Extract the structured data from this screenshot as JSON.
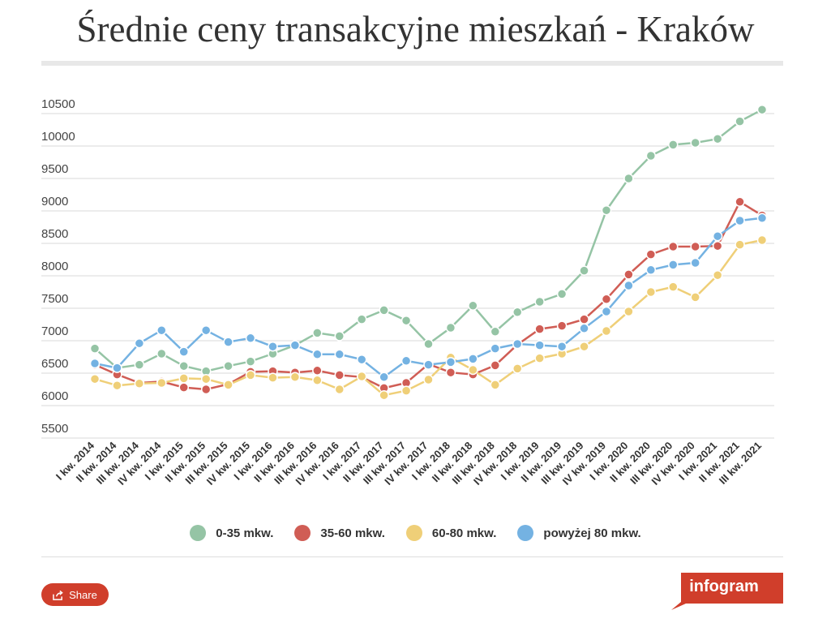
{
  "page": {
    "title": "Średnie ceny transakcyjne mieszkań - Kraków",
    "share_label": "Share",
    "brand": "infogram"
  },
  "colors": {
    "series": [
      "#95c4a5",
      "#d05d55",
      "#efcf78",
      "#74b2e2"
    ],
    "grid": "#d9d9d9",
    "accent": "#d03e2b"
  },
  "icons": {
    "share": "share-icon"
  },
  "chart_data": {
    "type": "line",
    "title": "Średnie ceny transakcyjne mieszkań - Kraków",
    "xlabel": "",
    "ylabel": "",
    "ylim": [
      5500,
      10500
    ],
    "yticks": [
      5500,
      6000,
      6500,
      7000,
      7500,
      8000,
      8500,
      9000,
      9500,
      10000,
      10500
    ],
    "grid": true,
    "legend_position": "bottom",
    "categories": [
      "I kw. 2014",
      "II kw. 2014",
      "III kw. 2014",
      "IV kw. 2014",
      "I kw. 2015",
      "II kw. 2015",
      "III kw. 2015",
      "IV kw. 2015",
      "I kw. 2016",
      "II kw. 2016",
      "III kw. 2016",
      "IV kw. 2016",
      "I kw. 2017",
      "II kw. 2017",
      "III kw. 2017",
      "IV kw. 2017",
      "I kw. 2018",
      "II kw. 2018",
      "III kw. 2018",
      "IV kw. 2018",
      "I kw. 2019",
      "II kw. 2019",
      "III kw. 2019",
      "IV kw. 2019",
      "I kw. 2020",
      "II kw. 2020",
      "III kw. 2020",
      "IV kw. 2020",
      "I kw. 2021",
      "II kw. 2021",
      "III kw. 2021"
    ],
    "series": [
      {
        "name": "0-35 mkw.",
        "values": [
          6730,
          6430,
          6480,
          6650,
          6460,
          6380,
          6460,
          6530,
          6650,
          6780,
          6970,
          6920,
          7180,
          7320,
          7160,
          6800,
          7050,
          7390,
          6990,
          7290,
          7450,
          7570,
          7930,
          8860,
          9350,
          9700,
          9870,
          9900,
          9960,
          10230,
          10410
        ]
      },
      {
        "name": "35-60 mkw.",
        "values": [
          6480,
          6330,
          6200,
          6220,
          6130,
          6100,
          6180,
          6370,
          6380,
          6360,
          6390,
          6320,
          6290,
          6120,
          6200,
          6490,
          6360,
          6330,
          6470,
          6790,
          7030,
          7080,
          7180,
          7490,
          7870,
          8180,
          8300,
          8300,
          8310,
          8990,
          8780
        ]
      },
      {
        "name": "60-80 mkw.",
        "values": [
          6260,
          6160,
          6190,
          6200,
          6270,
          6260,
          6170,
          6320,
          6280,
          6290,
          6240,
          6100,
          6300,
          6010,
          6080,
          6250,
          6590,
          6400,
          6170,
          6420,
          6580,
          6650,
          6760,
          7000,
          7300,
          7600,
          7680,
          7520,
          7860,
          8330,
          8400
        ]
      },
      {
        "name": "powyżej 80 mkw.",
        "values": [
          6500,
          6430,
          6810,
          7010,
          6680,
          7010,
          6830,
          6890,
          6760,
          6780,
          6640,
          6640,
          6560,
          6290,
          6540,
          6480,
          6520,
          6570,
          6730,
          6800,
          6780,
          6760,
          7040,
          7300,
          7700,
          7940,
          8020,
          8050,
          8460,
          8700,
          8740
        ]
      }
    ]
  }
}
